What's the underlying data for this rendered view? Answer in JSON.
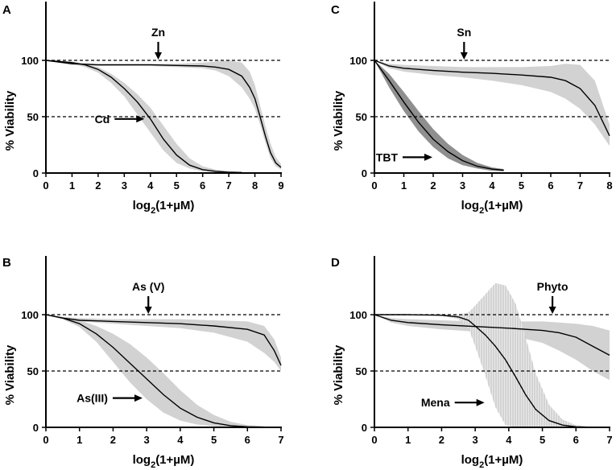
{
  "chart_data": [
    {
      "type": "line",
      "panel": "A",
      "xlabel": "log2(1+µM)",
      "xlabel_parts": {
        "main": "log",
        "sub": "2",
        "rest": "(1+µM)"
      },
      "ylabel": "% Viability",
      "xlim": [
        0,
        9
      ],
      "ylim": [
        0,
        150
      ],
      "xticks": [
        0,
        1,
        2,
        3,
        4,
        5,
        6,
        7,
        8,
        9
      ],
      "yticks": [
        0,
        50,
        100
      ],
      "reference_lines": [
        100,
        50
      ],
      "series": [
        {
          "name": "Zn",
          "style": "dotted-tail",
          "x": [
            0,
            1,
            2,
            3,
            4,
            5,
            6,
            6.5,
            7,
            7.5,
            7.8,
            8,
            8.2,
            8.4,
            8.6,
            8.8,
            9
          ],
          "y": [
            100,
            97,
            96,
            96,
            96,
            95.5,
            95,
            94,
            92,
            86,
            76,
            66,
            50,
            33,
            18,
            9,
            5
          ],
          "lower": [
            100,
            96,
            95,
            95,
            95,
            94,
            93,
            91,
            86,
            76,
            66,
            57,
            43,
            27,
            13,
            6,
            3
          ],
          "upper": [
            100,
            98,
            97,
            97,
            97,
            97,
            98,
            99,
            100,
            98,
            90,
            78,
            60,
            42,
            26,
            14,
            8
          ]
        },
        {
          "name": "Cd",
          "x": [
            0,
            1,
            1.5,
            2,
            2.5,
            3,
            3.5,
            4,
            4.5,
            5,
            5.5,
            6,
            6.5,
            7,
            7.5
          ],
          "y": [
            100,
            98,
            96,
            92,
            85,
            75,
            63,
            48,
            30,
            16,
            7,
            3,
            1.5,
            0.8,
            0.5
          ],
          "lower": [
            100,
            97,
            94,
            89,
            80,
            68,
            52,
            36,
            20,
            9,
            4,
            1.5,
            0.5,
            0.3,
            0.2
          ],
          "upper": [
            100,
            99,
            97,
            94,
            88,
            80,
            70,
            58,
            42,
            26,
            13,
            6,
            3,
            1.5,
            0.8
          ]
        }
      ],
      "annotations": [
        {
          "text": "Zn",
          "x": 4.3,
          "y": 100,
          "arrow": "down"
        },
        {
          "text": "Cd",
          "x": 3.8,
          "y": 48,
          "arrow": "right"
        }
      ]
    },
    {
      "type": "line",
      "panel": "C",
      "xlabel": "log2(1+µM)",
      "xlabel_parts": {
        "main": "log",
        "sub": "2",
        "rest": "(1+µM)"
      },
      "ylabel": "% Viability",
      "xlim": [
        0,
        8
      ],
      "ylim": [
        0,
        150
      ],
      "xticks": [
        0,
        1,
        2,
        3,
        4,
        5,
        6,
        7,
        8
      ],
      "yticks": [
        0,
        50,
        100
      ],
      "reference_lines": [
        100,
        50
      ],
      "series": [
        {
          "name": "Sn",
          "x": [
            0,
            0.5,
            1,
            2,
            3,
            4,
            5,
            6,
            6.5,
            7,
            7.5,
            8
          ],
          "y": [
            100,
            95,
            93,
            91,
            89.5,
            88.5,
            87,
            85,
            82,
            75,
            60,
            33
          ],
          "lower": [
            100,
            93,
            90,
            87,
            85,
            82,
            78,
            72,
            66,
            57,
            43,
            24
          ],
          "upper": [
            100,
            97,
            96,
            95,
            94,
            94,
            94,
            95,
            97,
            96,
            82,
            43
          ]
        },
        {
          "name": "TBT",
          "band_shade": "dark",
          "x": [
            0,
            0.5,
            1,
            1.5,
            2,
            2.5,
            3,
            3.5,
            4,
            4.4
          ],
          "y": [
            100,
            82,
            63,
            45,
            30,
            19,
            11,
            6,
            3.5,
            2.5
          ],
          "lower": [
            100,
            76,
            55,
            37,
            23,
            13,
            7,
            4,
            2,
            1.5
          ],
          "upper": [
            100,
            88,
            72,
            55,
            39,
            26,
            16,
            9,
            5,
            3.5
          ]
        }
      ],
      "annotations": [
        {
          "text": "Sn",
          "x": 3.05,
          "y": 100,
          "arrow": "down"
        },
        {
          "text": "TBT",
          "x": 2.0,
          "y": 14,
          "arrow": "right"
        }
      ]
    },
    {
      "type": "line",
      "panel": "B",
      "xlabel": "log2(1+µM)",
      "xlabel_parts": {
        "main": "log",
        "sub": "2",
        "rest": "(1+µM)"
      },
      "ylabel": "% Viability",
      "xlim": [
        0,
        7
      ],
      "ylim": [
        0,
        150
      ],
      "xticks": [
        0,
        1,
        2,
        3,
        4,
        5,
        6,
        7
      ],
      "yticks": [
        0,
        50,
        100
      ],
      "reference_lines": [
        100,
        50
      ],
      "series": [
        {
          "name": "As (V)",
          "x": [
            0,
            0.5,
            1,
            2,
            3,
            4,
            5,
            6,
            6.5,
            6.8,
            7
          ],
          "y": [
            100,
            97,
            95,
            94,
            93,
            92,
            90,
            87,
            82,
            68,
            55
          ],
          "lower": [
            100,
            96,
            94,
            92,
            90,
            88,
            84,
            76,
            66,
            58,
            50
          ],
          "upper": [
            100,
            98,
            97,
            96,
            96,
            96,
            95,
            94,
            90,
            78,
            62
          ]
        },
        {
          "name": "As(III)",
          "x": [
            0,
            0.5,
            1,
            1.5,
            2,
            2.5,
            3,
            3.5,
            4,
            4.5,
            5,
            5.5,
            6,
            6.5
          ],
          "y": [
            100,
            97,
            92,
            83,
            71,
            57,
            43,
            29,
            17,
            9,
            4,
            1.5,
            0.5,
            0.2
          ],
          "lower": [
            100,
            96,
            89,
            76,
            58,
            40,
            25,
            13,
            6,
            2.5,
            1,
            0.3,
            0.1,
            0
          ],
          "upper": [
            100,
            98,
            95,
            90,
            83,
            74,
            62,
            48,
            33,
            20,
            11,
            5,
            2,
            1
          ]
        }
      ],
      "annotations": [
        {
          "text": "As (V)",
          "x": 3.05,
          "y": 100,
          "arrow": "down"
        },
        {
          "text": "As(III)",
          "x": 2.9,
          "y": 26,
          "arrow": "right"
        }
      ]
    },
    {
      "type": "line",
      "panel": "D",
      "xlabel": "log2(1+µM)",
      "xlabel_parts": {
        "main": "log",
        "sub": "2",
        "rest": "(1+µM)"
      },
      "ylabel": "% Viability",
      "xlim": [
        0,
        7
      ],
      "ylim": [
        0,
        150
      ],
      "xticks": [
        0,
        1,
        2,
        3,
        4,
        5,
        6,
        7
      ],
      "yticks": [
        0,
        50,
        100
      ],
      "reference_lines": [
        100,
        50
      ],
      "series": [
        {
          "name": "Phyto",
          "x": [
            0,
            0.5,
            1,
            2,
            3,
            4,
            5,
            5.5,
            6,
            6.5,
            7
          ],
          "y": [
            100,
            95,
            93,
            91,
            89.5,
            88,
            86,
            84,
            80,
            72,
            64
          ],
          "lower": [
            100,
            93,
            90,
            87,
            85,
            82,
            75,
            68,
            60,
            50,
            42
          ],
          "upper": [
            100,
            97,
            96,
            95,
            94,
            94,
            94,
            93,
            92,
            90,
            86
          ]
        },
        {
          "name": "Mena",
          "band_style": "hatched",
          "x": [
            0,
            1,
            2,
            2.5,
            2.8,
            3,
            3.3,
            3.6,
            3.9,
            4.2,
            4.5,
            4.8,
            5.2,
            5.6,
            6,
            6.3
          ],
          "y": [
            100,
            100,
            99.5,
            98,
            95,
            90,
            82,
            72,
            60,
            45,
            29,
            16,
            6,
            2,
            0.5,
            0.2
          ],
          "lower": [
            100,
            100,
            99,
            96,
            88,
            72,
            46,
            18,
            2,
            0,
            0,
            0,
            0,
            0,
            0,
            0
          ],
          "upper": [
            100,
            100,
            100,
            100,
            102,
            108,
            118,
            128,
            126,
            110,
            80,
            48,
            20,
            7,
            2,
            1
          ]
        }
      ],
      "annotations": [
        {
          "text": "Phyto",
          "x": 5.3,
          "y": 100,
          "arrow": "down"
        },
        {
          "text": "Mena",
          "x": 3.3,
          "y": 22,
          "arrow": "right"
        }
      ]
    }
  ]
}
